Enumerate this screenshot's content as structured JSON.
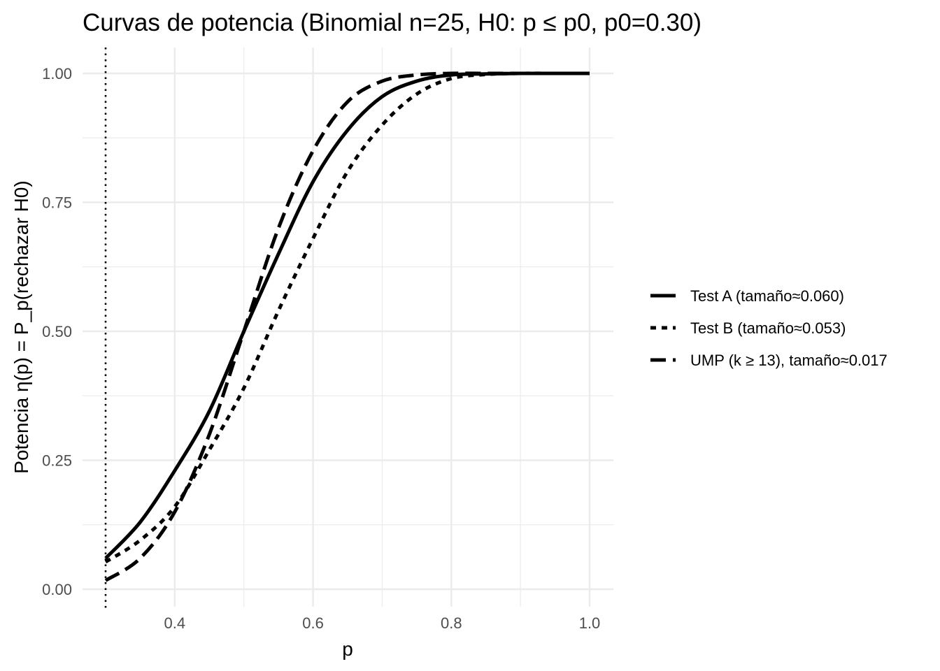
{
  "chart_data": {
    "type": "line",
    "title": "Curvas de potencia (Binomial n=25, H0: p ≤ p0, p0=0.30)",
    "xlabel": "p",
    "ylabel": "Potencia  η(p) = P_p(rechazar H0)",
    "xlim": [
      0.3,
      1.0
    ],
    "ylim": [
      0,
      1
    ],
    "x_ticks": [
      0.4,
      0.6,
      0.8,
      1.0
    ],
    "x_tick_labels": [
      "0.4",
      "0.6",
      "0.8",
      "1.0"
    ],
    "y_ticks": [
      0,
      0.25,
      0.5,
      0.75,
      1.0
    ],
    "y_tick_labels": [
      "0.00",
      "0.25",
      "0.50",
      "0.75",
      "1.00"
    ],
    "grid": true,
    "legend_position": "right",
    "reference_line": {
      "x": 0.3,
      "style": "dotted"
    },
    "x": [
      0.3,
      0.35,
      0.4,
      0.45,
      0.5,
      0.55,
      0.6,
      0.65,
      0.7,
      0.75,
      0.8,
      0.85,
      0.9,
      0.95,
      1.0
    ],
    "series": [
      {
        "name": "Test A (tamaño≈0.060)",
        "linetype": "solid",
        "values": [
          0.06,
          0.13,
          0.23,
          0.345,
          0.5,
          0.65,
          0.79,
          0.89,
          0.955,
          0.985,
          0.997,
          0.999,
          1.0,
          1.0,
          1.0
        ]
      },
      {
        "name": "Test B (tamaño≈0.053)",
        "linetype": "dotted",
        "values": [
          0.053,
          0.095,
          0.16,
          0.27,
          0.39,
          0.54,
          0.68,
          0.81,
          0.9,
          0.96,
          0.99,
          0.998,
          1.0,
          1.0,
          1.0
        ]
      },
      {
        "name": "UMP (k ≥ 13), tamaño≈0.017",
        "linetype": "dashed",
        "values": [
          0.017,
          0.06,
          0.15,
          0.3,
          0.5,
          0.7,
          0.85,
          0.945,
          0.985,
          0.997,
          1.0,
          1.0,
          1.0,
          1.0,
          1.0
        ]
      }
    ]
  }
}
